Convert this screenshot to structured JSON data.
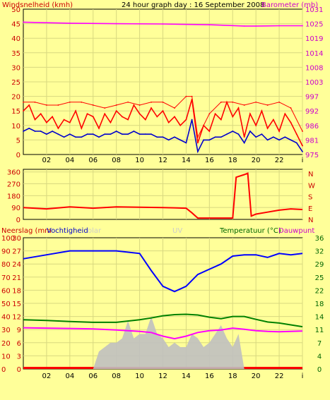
{
  "chart_data": [
    {
      "type": "line",
      "title": "24 hour graph day : 16 September 2008",
      "left_axis": {
        "label": "Windsnelheid (kmh)",
        "ticks": [
          0,
          5,
          10,
          15,
          20,
          25,
          30,
          35,
          40,
          45,
          50
        ],
        "range": [
          0,
          50
        ]
      },
      "right_axis": {
        "label": "Barometer (mb)",
        "ticks": [
          975,
          981,
          986,
          992,
          997,
          1003,
          1008,
          1014,
          1019,
          1025,
          1031
        ],
        "range": [
          975,
          1031
        ]
      },
      "x_ticks": [
        "02",
        "04",
        "06",
        "08",
        "10",
        "12",
        "14",
        "16",
        "18",
        "20",
        "22",
        "i"
      ],
      "x_range": [
        0,
        24
      ],
      "series": [
        {
          "name": "Windsnelheid",
          "color": "#ff0000",
          "x": [
            0,
            0.5,
            1,
            1.5,
            2,
            2.5,
            3,
            3.5,
            4,
            4.5,
            5,
            5.5,
            6,
            6.5,
            7,
            7.5,
            8,
            8.5,
            9,
            9.5,
            10,
            10.5,
            11,
            11.5,
            12,
            12.5,
            13,
            13.5,
            14,
            14.5,
            15,
            15.5,
            16,
            16.5,
            17,
            17.5,
            18,
            18.5,
            19,
            19.5,
            20,
            20.5,
            21,
            21.5,
            22,
            22.5,
            23,
            23.5,
            24
          ],
          "values": [
            15,
            17,
            12,
            14,
            11,
            13,
            9,
            12,
            11,
            15,
            9,
            14,
            13,
            9,
            14,
            11,
            15,
            13,
            12,
            17,
            14,
            12,
            16,
            13,
            15,
            11,
            13,
            10,
            12,
            19,
            4,
            10,
            8,
            14,
            12,
            18,
            13,
            16,
            6,
            14,
            10,
            15,
            9,
            12,
            8,
            14,
            11,
            7,
            3
          ]
        },
        {
          "name": "Windstoten",
          "color": "#ff0000",
          "x": [
            0,
            1,
            2,
            3,
            4,
            5,
            6,
            7,
            8,
            9,
            10,
            11,
            12,
            13,
            14,
            14.5,
            15,
            16,
            17,
            18,
            19,
            20,
            21,
            22,
            23,
            24
          ],
          "values": [
            18,
            18,
            17,
            17,
            18,
            18,
            17,
            16,
            17,
            18,
            17,
            18,
            18,
            16,
            20,
            20,
            6,
            14,
            18,
            18,
            17,
            18,
            17,
            18,
            16,
            8
          ]
        },
        {
          "name": "Gemiddelde",
          "color": "#0000cc",
          "x": [
            0,
            0.5,
            1,
            1.5,
            2,
            2.5,
            3,
            3.5,
            4,
            4.5,
            5,
            5.5,
            6,
            6.5,
            7,
            7.5,
            8,
            8.5,
            9,
            9.5,
            10,
            10.5,
            11,
            11.5,
            12,
            12.5,
            13,
            13.5,
            14,
            14.5,
            15,
            15.5,
            16,
            16.5,
            17,
            17.5,
            18,
            18.5,
            19,
            19.5,
            20,
            20.5,
            21,
            21.5,
            22,
            22.5,
            23,
            23.5,
            24
          ],
          "values": [
            8,
            9,
            8,
            8,
            7,
            8,
            7,
            6,
            7,
            6,
            6,
            7,
            7,
            6,
            7,
            7,
            8,
            7,
            7,
            8,
            7,
            7,
            7,
            6,
            6,
            5,
            6,
            5,
            4,
            12,
            1,
            5,
            5,
            6,
            6,
            7,
            8,
            7,
            4,
            8,
            6,
            7,
            5,
            6,
            5,
            6,
            5,
            4,
            1
          ]
        },
        {
          "name": "Barometer",
          "axis": "right",
          "color": "#ff00ff",
          "x": [
            0,
            4,
            8,
            12,
            16,
            19,
            20,
            22,
            24
          ],
          "values": [
            1026,
            1025.6,
            1025.4,
            1025.3,
            1025,
            1024.5,
            1024.5,
            1024.6,
            1024.6
          ]
        }
      ]
    },
    {
      "type": "line",
      "title": "",
      "left_axis": {
        "label": "",
        "ticks": [
          0,
          90,
          180,
          270,
          360
        ],
        "range": [
          0,
          380
        ]
      },
      "right_axis": {
        "label": "",
        "ticks": [
          "N",
          "W",
          "S",
          "E",
          "N"
        ]
      },
      "x_ticks": [],
      "x_range": [
        0,
        24
      ],
      "series": [
        {
          "name": "Windrichting",
          "color": "#ff0000",
          "x": [
            0,
            2,
            4,
            6,
            8,
            10,
            12,
            13,
            14,
            14.5,
            15,
            16,
            17,
            18,
            18.3,
            19,
            19.3,
            19.6,
            20,
            21,
            22,
            23,
            24
          ],
          "values": [
            90,
            80,
            95,
            85,
            95,
            92,
            90,
            88,
            85,
            50,
            10,
            10,
            10,
            10,
            320,
            340,
            350,
            25,
            40,
            55,
            70,
            80,
            75
          ]
        }
      ]
    },
    {
      "type": "line",
      "title": "",
      "labels": {
        "left1": "Neerslag (mm",
        "left2": "Vochtigheid",
        "left3": "olar",
        "center": "UV",
        "right1": "Temperatuur (°C)",
        "right2": "Dauwpunt"
      },
      "left_axis_1": {
        "ticks": [
          0,
          10,
          20,
          30,
          40,
          50,
          60,
          70,
          80,
          90,
          100
        ]
      },
      "left_axis_2": {
        "ticks": [
          0,
          3,
          6,
          9,
          12,
          15,
          18,
          21,
          24,
          27,
          30
        ]
      },
      "right_axis": {
        "ticks": [
          0,
          4,
          7,
          11,
          14,
          18,
          22,
          25,
          29,
          32,
          36
        ],
        "range": [
          0,
          36
        ]
      },
      "x_ticks": [
        "02",
        "04",
        "06",
        "08",
        "10",
        "12",
        "14",
        "16",
        "18",
        "20",
        "22",
        "i"
      ],
      "x_range": [
        0,
        24
      ],
      "series": [
        {
          "name": "Vochtigheid",
          "color": "#0000ff",
          "x": [
            0,
            2,
            4,
            6,
            8,
            10,
            11,
            12,
            13,
            14,
            15,
            16,
            17,
            18,
            19,
            20,
            21,
            22,
            23,
            24
          ],
          "values": [
            84,
            87,
            90,
            90,
            90,
            88,
            75,
            63,
            59,
            63,
            72,
            76,
            80,
            86,
            87,
            87,
            85,
            88,
            87,
            88
          ]
        },
        {
          "name": "Temperatuur",
          "color": "#008000",
          "x": [
            0,
            2,
            4,
            6,
            8,
            10,
            11,
            12,
            13,
            14,
            15,
            16,
            17,
            18,
            19,
            20,
            21,
            22,
            23,
            24
          ],
          "values": [
            13.5,
            13.3,
            13.0,
            12.8,
            12.8,
            13.5,
            14.0,
            14.6,
            14.9,
            15.0,
            14.8,
            14.2,
            13.8,
            14.4,
            14.4,
            13.6,
            12.9,
            12.6,
            12.1,
            11.6
          ]
        },
        {
          "name": "Dauwpunt",
          "color": "#ff00ff",
          "x": [
            0,
            2,
            4,
            6,
            8,
            10,
            11,
            12,
            13,
            14,
            15,
            16,
            17,
            18,
            19,
            20,
            21,
            22,
            23,
            24
          ],
          "values": [
            11.3,
            11.2,
            11.1,
            11.0,
            10.7,
            10.3,
            10.0,
            9.0,
            8.3,
            9.0,
            10.0,
            10.5,
            10.7,
            11.2,
            10.9,
            10.5,
            10.3,
            10.2,
            10.3,
            10.4
          ]
        },
        {
          "name": "Solar",
          "color": "#c0c0c0",
          "x": [
            6,
            6.5,
            7,
            7.5,
            8,
            8.5,
            9,
            9.5,
            10,
            10.5,
            11,
            11.5,
            12,
            12.5,
            13,
            13.5,
            14,
            14.5,
            15,
            15.5,
            16,
            16.5,
            17,
            17.5,
            18,
            18.5,
            19
          ],
          "values": [
            0,
            4,
            5,
            6,
            6,
            7,
            11,
            7,
            8,
            8,
            12,
            8,
            7,
            5,
            6,
            5,
            5,
            8,
            7,
            5,
            6,
            8,
            10,
            7,
            5,
            8,
            0
          ]
        }
      ]
    }
  ]
}
